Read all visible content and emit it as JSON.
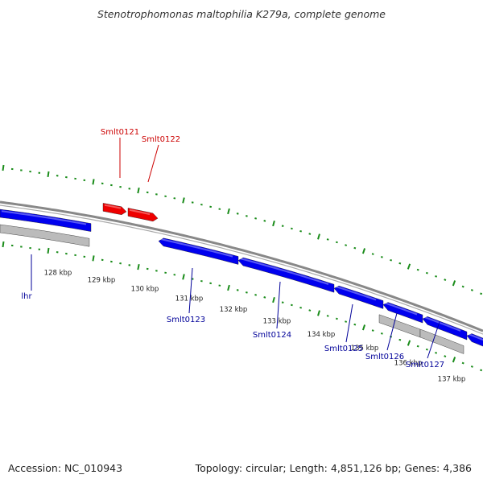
{
  "title": "Stenotrophomonas maltophilia K279a, complete genome",
  "footer": {
    "accession": "Accession: NC_010943",
    "summary": "Topology: circular; Length: 4,851,126 bp; Genes: 4,386"
  },
  "colors": {
    "forward_gene": "#ee0000",
    "reverse_gene": "#0000ee",
    "pseudo_or_rna": "#bbbbbb",
    "backbone": "#888888",
    "ticks": "#1a8c1a",
    "forward_label": "#cc0000",
    "reverse_label": "#000099"
  },
  "chart_data": {
    "type": "genome-map",
    "scale_labels": [
      "128 kbp",
      "129 kbp",
      "130 kbp",
      "131 kbp",
      "132 kbp",
      "133 kbp",
      "134 kbp",
      "135 kbp",
      "136 kbp",
      "137 kbp"
    ],
    "forward_labels": [
      "Smlt0121",
      "Smlt0122"
    ],
    "reverse_labels": [
      "lhr",
      "Smlt0123",
      "Smlt0124",
      "Smlt0125",
      "Smlt0126",
      "Smlt0127"
    ]
  }
}
